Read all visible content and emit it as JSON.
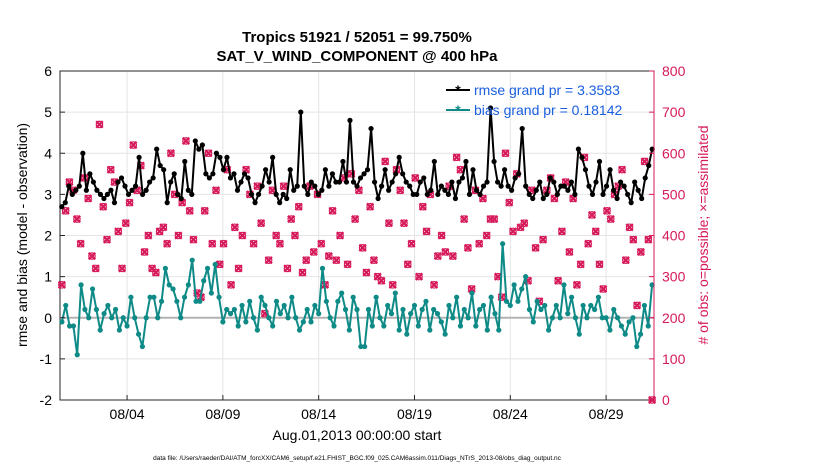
{
  "chart_data": {
    "type": "line",
    "title": "Tropics 51921 / 52051 = 99.750%",
    "subtitle": "SAT_V_WIND_COMPONENT @ 400 hPa",
    "xlabel": "Aug.01,2013 00:00:00 start",
    "ylabel_left": "rmse and bias (model - observation)",
    "ylabel_right": "# of obs: o=possible; ×=assimilated",
    "footer": "data file: /Users/raeder/DAI/ATM_forcXX/CAM6_setup/f.e21.FHIST_BGC.f09_025.CAM6assim.011/Diags_NTrS_2013-08/obs_diag_output.nc",
    "x_range": [
      0,
      31
    ],
    "ylim_left": [
      -2,
      6
    ],
    "ylim_right": [
      0,
      800
    ],
    "left_ticks": [
      "-2",
      "-1",
      "0",
      "1",
      "2",
      "3",
      "4",
      "5",
      "6"
    ],
    "right_ticks": [
      "0",
      "100",
      "200",
      "300",
      "400",
      "500",
      "600",
      "700",
      "800"
    ],
    "x_ticks": [
      {
        "x": 3.5,
        "label": "08/04"
      },
      {
        "x": 8.5,
        "label": "08/09"
      },
      {
        "x": 13.5,
        "label": "08/14"
      },
      {
        "x": 18.5,
        "label": "08/19"
      },
      {
        "x": 23.5,
        "label": "08/24"
      },
      {
        "x": 28.5,
        "label": "08/29"
      }
    ],
    "grid": true,
    "legend_position": "top-right",
    "series": [
      {
        "name": "rmse grand pr = 3.3583",
        "axis": "left",
        "color": "#000000",
        "marker": "asterisk",
        "values": [
          2.7,
          2.8,
          3.2,
          3.0,
          3.1,
          3.2,
          4.0,
          3.1,
          3.5,
          3.3,
          3.1,
          3.0,
          2.9,
          3.0,
          3.1,
          2.8,
          3.3,
          3.4,
          3.2,
          3.0,
          3.1,
          3.2,
          3.9,
          3.0,
          3.1,
          3.3,
          3.4,
          4.1,
          3.7,
          3.6,
          2.8,
          3.3,
          3.5,
          3.0,
          2.9,
          3.8,
          3.1,
          3.0,
          4.3,
          4.1,
          4.2,
          3.5,
          3.4,
          3.5,
          4.0,
          3.9,
          3.6,
          3.9,
          3.4,
          3.5,
          3.1,
          3.3,
          3.5,
          3.4,
          3.0,
          2.8,
          3.0,
          3.2,
          3.6,
          3.3,
          3.9,
          3.0,
          2.8,
          3.0,
          2.9,
          3.6,
          3.1,
          3.2,
          5.0,
          3.2,
          3.0,
          3.3,
          3.2,
          3.0,
          3.1,
          3.6,
          3.2,
          3.5,
          3.3,
          3.3,
          3.8,
          3.3,
          4.8,
          3.3,
          3.2,
          3.4,
          3.5,
          3.6,
          4.6,
          3.3,
          2.9,
          3.2,
          3.6,
          3.1,
          3.3,
          3.5,
          3.9,
          3.5,
          3.3,
          3.2,
          3.0,
          3.0,
          3.3,
          3.4,
          3.0,
          3.1,
          3.8,
          3.0,
          3.2,
          3.1,
          3.0,
          3.3,
          2.9,
          3.3,
          3.4,
          3.8,
          3.0,
          3.6,
          3.1,
          3.0,
          3.2,
          3.3,
          5.1,
          3.8,
          3.3,
          3.2,
          3.6,
          3.2,
          3.1,
          3.4,
          3.5,
          4.6,
          3.2,
          3.0,
          2.9,
          3.1,
          3.3,
          2.9,
          3.0,
          3.4,
          3.3,
          3.0,
          3.2,
          3.2,
          3.1,
          3.3,
          3.0,
          4.1,
          3.9,
          3.6,
          3.2,
          3.0,
          3.3,
          3.8,
          3.0,
          3.2,
          3.6,
          3.1,
          2.9,
          3.3,
          3.2,
          3.0,
          2.8,
          3.3,
          3.1,
          2.9,
          3.4,
          3.7,
          4.1
        ]
      },
      {
        "name": "bias grand pr = 0.18142",
        "axis": "left",
        "color": "#0E8A87",
        "marker": "asterisk",
        "values": [
          -0.1,
          0.3,
          -0.2,
          -0.2,
          -0.9,
          0.8,
          0.2,
          0.0,
          0.7,
          0.2,
          -0.3,
          0.1,
          0.3,
          0.0,
          0.2,
          -0.3,
          0.0,
          -0.2,
          0.5,
          0.0,
          -0.4,
          -0.7,
          0.0,
          0.5,
          0.5,
          0.0,
          0.4,
          1.2,
          0.8,
          0.7,
          0.4,
          0.0,
          0.5,
          0.8,
          1.4,
          0.4,
          0.4,
          0.9,
          1.2,
          0.6,
          1.3,
          0.5,
          -0.1,
          0.2,
          0.1,
          0.2,
          -0.2,
          0.3,
          -0.1,
          0.4,
          0.0,
          -0.3,
          0.5,
          0.3,
          0.0,
          -0.2,
          0.4,
          0.1,
          0.3,
          0.0,
          0.5,
          0.0,
          -0.3,
          -0.1,
          0.2,
          -0.1,
          0.3,
          0.1,
          1.2,
          0.4,
          0.0,
          -0.2,
          0.4,
          0.6,
          0.2,
          -0.3,
          0.5,
          0.2,
          -0.7,
          -0.7,
          0.2,
          -0.2,
          0.5,
          0.0,
          -0.2,
          0.3,
          0.1,
          0.6,
          -0.3,
          0.2,
          -0.4,
          0.1,
          0.3,
          -0.2,
          0.2,
          0.4,
          -0.3,
          0.2,
          0.1,
          -0.1,
          -0.4,
          0.3,
          0.0,
          0.5,
          -0.2,
          0.2,
          0.0,
          0.6,
          -0.2,
          0.2,
          0.3,
          -0.3,
          0.5,
          0.1,
          -0.3,
          1.8,
          0.4,
          0.3,
          0.8,
          0.4,
          0.7,
          1.0,
          0.2,
          -0.1,
          0.4,
          0.2,
          0.3,
          -0.3,
          0.0,
          0.3,
          0.0,
          0.8,
          0.1,
          0.5,
          0.0,
          -0.4,
          0.3,
          0.0,
          0.3,
          0.2,
          0.5,
          0.0,
          0.0,
          -0.3,
          0.2,
          0.0,
          -0.2,
          -0.4,
          -0.1,
          0.0,
          -0.7,
          -0.4,
          0.3,
          -0.2,
          0.8
        ]
      },
      {
        "name": "possible",
        "axis": "right",
        "color": "#D6195A",
        "marker": "circle",
        "values": [
          280,
          460,
          530,
          510,
          440,
          380,
          540,
          490,
          350,
          320,
          670,
          470,
          390,
          560,
          530,
          410,
          320,
          430,
          480,
          620,
          510,
          570,
          360,
          400,
          320,
          310,
          410,
          420,
          380,
          600,
          500,
          400,
          480,
          630,
          460,
          390,
          260,
          250,
          460,
          600,
          380,
          510,
          330,
          380,
          560,
          280,
          420,
          320,
          400,
          560,
          500,
          380,
          520,
          430,
          210,
          340,
          510,
          400,
          380,
          520,
          320,
          440,
          400,
          470,
          310,
          340,
          520,
          360,
          500,
          380,
          280,
          350,
          460,
          340,
          400,
          540,
          330,
          550,
          440,
          510,
          370,
          310,
          470,
          340,
          300,
          290,
          580,
          430,
          280,
          560,
          510,
          430,
          330,
          380,
          540,
          300,
          470,
          410,
          500,
          280,
          350,
          400,
          360,
          520,
          350,
          590,
          560,
          440,
          370,
          270,
          510,
          380,
          490,
          400,
          440,
          440,
          300,
          250,
          600,
          480,
          410,
          550,
          420,
          430,
          290,
          510,
          370,
          240,
          390,
          510,
          540,
          490,
          290,
          410,
          530,
          360,
          490,
          280,
          330,
          590,
          380,
          450,
          410,
          330,
          270,
          460,
          440,
          500,
          520,
          560,
          340,
          420,
          390,
          230,
          360,
          580,
          390,
          0
        ]
      },
      {
        "name": "assimilated",
        "axis": "right",
        "color": "#D6195A",
        "marker": "x",
        "values": [
          280,
          460,
          530,
          510,
          440,
          380,
          540,
          490,
          350,
          320,
          670,
          470,
          390,
          560,
          530,
          410,
          320,
          430,
          480,
          620,
          510,
          570,
          360,
          400,
          320,
          310,
          410,
          420,
          380,
          600,
          500,
          400,
          480,
          630,
          460,
          390,
          260,
          250,
          460,
          600,
          380,
          510,
          330,
          380,
          560,
          280,
          420,
          320,
          400,
          560,
          500,
          380,
          520,
          430,
          210,
          340,
          510,
          400,
          380,
          520,
          320,
          440,
          400,
          470,
          310,
          340,
          520,
          360,
          500,
          380,
          280,
          350,
          460,
          340,
          400,
          540,
          330,
          550,
          440,
          510,
          370,
          310,
          470,
          340,
          300,
          290,
          580,
          430,
          280,
          560,
          510,
          430,
          330,
          380,
          540,
          300,
          470,
          410,
          500,
          280,
          350,
          400,
          360,
          520,
          350,
          590,
          560,
          440,
          370,
          270,
          510,
          380,
          490,
          400,
          440,
          440,
          300,
          250,
          600,
          480,
          410,
          550,
          420,
          430,
          290,
          510,
          370,
          240,
          390,
          510,
          540,
          490,
          290,
          410,
          530,
          360,
          490,
          280,
          330,
          590,
          380,
          450,
          410,
          330,
          270,
          460,
          440,
          500,
          520,
          560,
          340,
          420,
          390,
          230,
          360,
          580,
          390,
          0
        ]
      }
    ],
    "reference_line": {
      "axis": "left",
      "y": 0,
      "color": "#b3b3b3"
    }
  }
}
